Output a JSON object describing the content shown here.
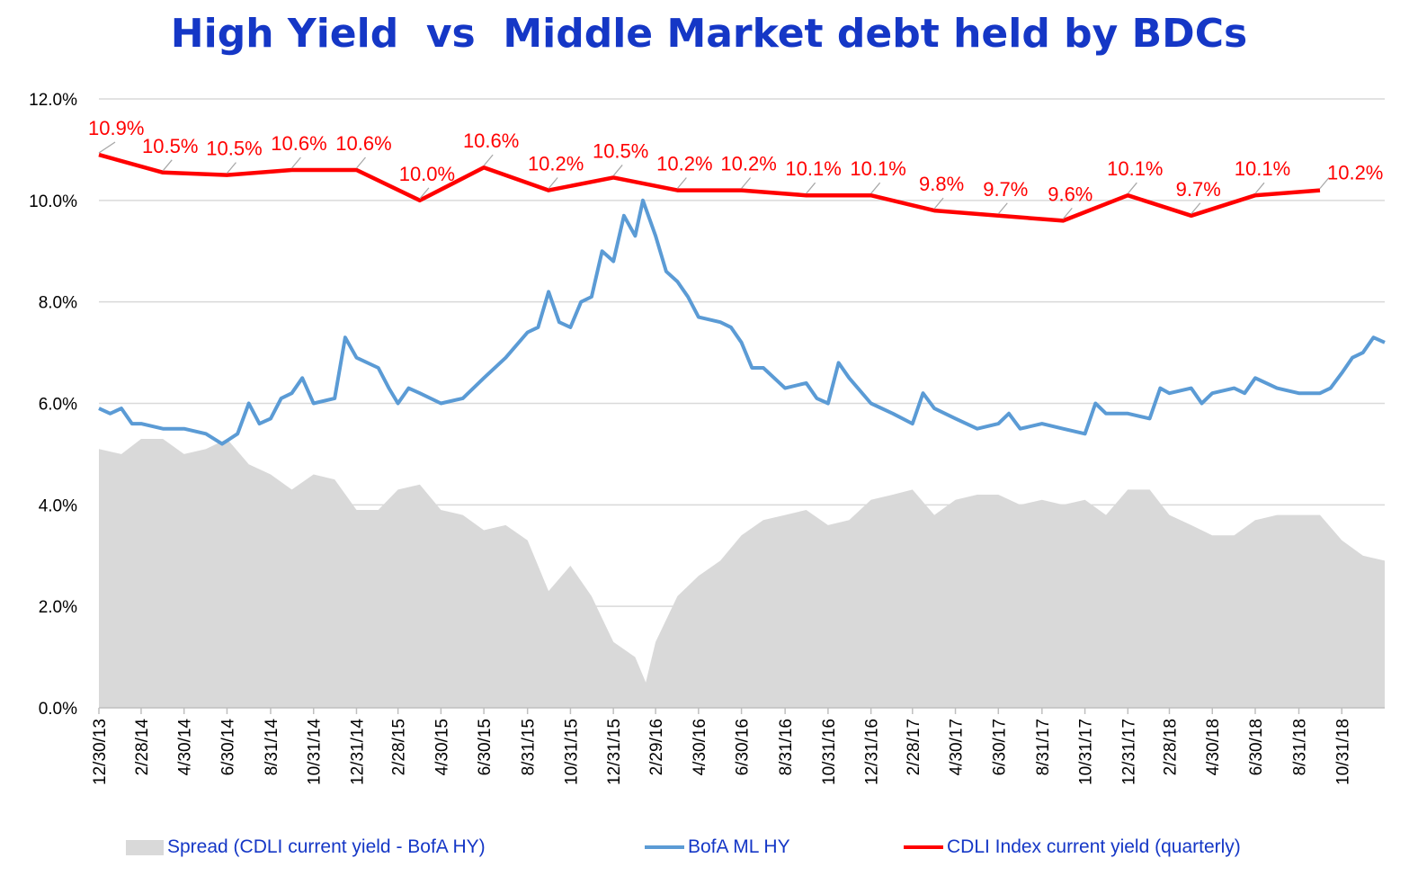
{
  "chart_data": {
    "type": "line",
    "title": "High Yield  vs  Middle Market debt held by BDCs",
    "title_color": "#1537C6",
    "legend_text_color": "#1537C6",
    "label_color": "#ff0000",
    "ylim": [
      0,
      12
    ],
    "y_ticks": [
      {
        "value": 0,
        "label": "0.0%"
      },
      {
        "value": 2,
        "label": "2.0%"
      },
      {
        "value": 4,
        "label": "4.0%"
      },
      {
        "value": 6,
        "label": "6.0%"
      },
      {
        "value": 8,
        "label": "8.0%"
      },
      {
        "value": 10,
        "label": "10.0%"
      },
      {
        "value": 12,
        "label": "12.0%"
      }
    ],
    "xlim": [
      "2013-12-30",
      "2018-12-31"
    ],
    "x_ticks": [
      {
        "date": "2013-12-30",
        "label": "12/30/13"
      },
      {
        "date": "2014-02-28",
        "label": "2/28/14"
      },
      {
        "date": "2014-04-30",
        "label": "4/30/14"
      },
      {
        "date": "2014-06-30",
        "label": "6/30/14"
      },
      {
        "date": "2014-08-31",
        "label": "8/31/14"
      },
      {
        "date": "2014-10-31",
        "label": "10/31/14"
      },
      {
        "date": "2014-12-31",
        "label": "12/31/14"
      },
      {
        "date": "2015-02-28",
        "label": "2/28/15"
      },
      {
        "date": "2015-04-30",
        "label": "4/30/15"
      },
      {
        "date": "2015-06-30",
        "label": "6/30/15"
      },
      {
        "date": "2015-08-31",
        "label": "8/31/15"
      },
      {
        "date": "2015-10-31",
        "label": "10/31/15"
      },
      {
        "date": "2015-12-31",
        "label": "12/31/15"
      },
      {
        "date": "2016-02-29",
        "label": "2/29/16"
      },
      {
        "date": "2016-04-30",
        "label": "4/30/16"
      },
      {
        "date": "2016-06-30",
        "label": "6/30/16"
      },
      {
        "date": "2016-08-31",
        "label": "8/31/16"
      },
      {
        "date": "2016-10-31",
        "label": "10/31/16"
      },
      {
        "date": "2016-12-31",
        "label": "12/31/16"
      },
      {
        "date": "2017-02-28",
        "label": "2/28/17"
      },
      {
        "date": "2017-04-30",
        "label": "4/30/17"
      },
      {
        "date": "2017-06-30",
        "label": "6/30/17"
      },
      {
        "date": "2017-08-31",
        "label": "8/31/17"
      },
      {
        "date": "2017-10-31",
        "label": "10/31/17"
      },
      {
        "date": "2017-12-31",
        "label": "12/31/17"
      },
      {
        "date": "2018-02-28",
        "label": "2/28/18"
      },
      {
        "date": "2018-04-30",
        "label": "4/30/18"
      },
      {
        "date": "2018-06-30",
        "label": "6/30/18"
      },
      {
        "date": "2018-08-31",
        "label": "8/31/18"
      },
      {
        "date": "2018-10-31",
        "label": "10/31/18"
      }
    ],
    "grid": "horizontal",
    "legend_position": "bottom",
    "series": [
      {
        "name": "Spread (CDLI current yield - BofA HY)",
        "kind": "area",
        "color": "#d9d9d9",
        "points": [
          [
            "2013-12-30",
            5.1
          ],
          [
            "2014-01-31",
            5.0
          ],
          [
            "2014-02-28",
            5.3
          ],
          [
            "2014-03-31",
            5.3
          ],
          [
            "2014-04-30",
            5.0
          ],
          [
            "2014-05-31",
            5.1
          ],
          [
            "2014-06-30",
            5.3
          ],
          [
            "2014-07-31",
            4.8
          ],
          [
            "2014-08-31",
            4.6
          ],
          [
            "2014-09-30",
            4.3
          ],
          [
            "2014-10-31",
            4.6
          ],
          [
            "2014-11-30",
            4.5
          ],
          [
            "2014-12-31",
            3.9
          ],
          [
            "2015-01-31",
            3.9
          ],
          [
            "2015-02-28",
            4.3
          ],
          [
            "2015-03-31",
            4.4
          ],
          [
            "2015-04-30",
            3.9
          ],
          [
            "2015-05-31",
            3.8
          ],
          [
            "2015-06-30",
            3.5
          ],
          [
            "2015-07-31",
            3.6
          ],
          [
            "2015-08-31",
            3.3
          ],
          [
            "2015-09-30",
            2.3
          ],
          [
            "2015-10-31",
            2.8
          ],
          [
            "2015-11-30",
            2.2
          ],
          [
            "2015-12-31",
            1.3
          ],
          [
            "2016-01-31",
            1.0
          ],
          [
            "2016-02-15",
            0.5
          ],
          [
            "2016-02-29",
            1.3
          ],
          [
            "2016-03-31",
            2.2
          ],
          [
            "2016-04-30",
            2.6
          ],
          [
            "2016-05-31",
            2.9
          ],
          [
            "2016-06-30",
            3.4
          ],
          [
            "2016-07-31",
            3.7
          ],
          [
            "2016-08-31",
            3.8
          ],
          [
            "2016-09-30",
            3.9
          ],
          [
            "2016-10-31",
            3.6
          ],
          [
            "2016-11-30",
            3.7
          ],
          [
            "2016-12-31",
            4.1
          ],
          [
            "2017-01-31",
            4.2
          ],
          [
            "2017-02-28",
            4.3
          ],
          [
            "2017-03-31",
            3.8
          ],
          [
            "2017-04-30",
            4.1
          ],
          [
            "2017-05-31",
            4.2
          ],
          [
            "2017-06-30",
            4.2
          ],
          [
            "2017-07-31",
            4.0
          ],
          [
            "2017-08-31",
            4.1
          ],
          [
            "2017-09-30",
            4.0
          ],
          [
            "2017-10-31",
            4.1
          ],
          [
            "2017-11-30",
            3.8
          ],
          [
            "2017-12-31",
            4.3
          ],
          [
            "2018-01-31",
            4.3
          ],
          [
            "2018-02-28",
            3.8
          ],
          [
            "2018-03-31",
            3.6
          ],
          [
            "2018-04-30",
            3.4
          ],
          [
            "2018-05-31",
            3.4
          ],
          [
            "2018-06-30",
            3.7
          ],
          [
            "2018-07-31",
            3.8
          ],
          [
            "2018-08-31",
            3.8
          ],
          [
            "2018-09-30",
            3.8
          ],
          [
            "2018-10-31",
            3.3
          ],
          [
            "2018-11-30",
            3.0
          ],
          [
            "2018-12-31",
            2.9
          ]
        ]
      },
      {
        "name": "BofA ML HY",
        "kind": "line",
        "color": "#5B9BD5",
        "points": [
          [
            "2013-12-30",
            5.9
          ],
          [
            "2014-01-15",
            5.8
          ],
          [
            "2014-01-31",
            5.9
          ],
          [
            "2014-02-15",
            5.6
          ],
          [
            "2014-02-28",
            5.6
          ],
          [
            "2014-03-31",
            5.5
          ],
          [
            "2014-04-30",
            5.5
          ],
          [
            "2014-05-31",
            5.4
          ],
          [
            "2014-06-23",
            5.2
          ],
          [
            "2014-07-15",
            5.4
          ],
          [
            "2014-07-31",
            6.0
          ],
          [
            "2014-08-15",
            5.6
          ],
          [
            "2014-08-31",
            5.7
          ],
          [
            "2014-09-15",
            6.1
          ],
          [
            "2014-09-30",
            6.2
          ],
          [
            "2014-10-15",
            6.5
          ],
          [
            "2014-10-31",
            6.0
          ],
          [
            "2014-11-30",
            6.1
          ],
          [
            "2014-12-15",
            7.3
          ],
          [
            "2014-12-31",
            6.9
          ],
          [
            "2015-01-31",
            6.7
          ],
          [
            "2015-02-15",
            6.3
          ],
          [
            "2015-02-28",
            6.0
          ],
          [
            "2015-03-15",
            6.3
          ],
          [
            "2015-03-31",
            6.2
          ],
          [
            "2015-04-30",
            6.0
          ],
          [
            "2015-05-31",
            6.1
          ],
          [
            "2015-06-30",
            6.5
          ],
          [
            "2015-07-31",
            6.9
          ],
          [
            "2015-08-31",
            7.4
          ],
          [
            "2015-09-15",
            7.5
          ],
          [
            "2015-09-30",
            8.2
          ],
          [
            "2015-10-15",
            7.6
          ],
          [
            "2015-10-31",
            7.5
          ],
          [
            "2015-11-15",
            8.0
          ],
          [
            "2015-11-30",
            8.1
          ],
          [
            "2015-12-15",
            9.0
          ],
          [
            "2015-12-31",
            8.8
          ],
          [
            "2016-01-15",
            9.7
          ],
          [
            "2016-01-31",
            9.3
          ],
          [
            "2016-02-11",
            10.0
          ],
          [
            "2016-02-29",
            9.3
          ],
          [
            "2016-03-15",
            8.6
          ],
          [
            "2016-03-31",
            8.4
          ],
          [
            "2016-04-15",
            8.1
          ],
          [
            "2016-04-30",
            7.7
          ],
          [
            "2016-05-31",
            7.6
          ],
          [
            "2016-06-15",
            7.5
          ],
          [
            "2016-06-30",
            7.2
          ],
          [
            "2016-07-15",
            6.7
          ],
          [
            "2016-07-31",
            6.7
          ],
          [
            "2016-08-31",
            6.3
          ],
          [
            "2016-09-30",
            6.4
          ],
          [
            "2016-10-15",
            6.1
          ],
          [
            "2016-10-31",
            6.0
          ],
          [
            "2016-11-15",
            6.8
          ],
          [
            "2016-11-30",
            6.5
          ],
          [
            "2016-12-31",
            6.0
          ],
          [
            "2017-01-31",
            5.8
          ],
          [
            "2017-02-28",
            5.6
          ],
          [
            "2017-03-15",
            6.2
          ],
          [
            "2017-03-31",
            5.9
          ],
          [
            "2017-04-30",
            5.7
          ],
          [
            "2017-05-31",
            5.5
          ],
          [
            "2017-06-30",
            5.6
          ],
          [
            "2017-07-15",
            5.8
          ],
          [
            "2017-07-31",
            5.5
          ],
          [
            "2017-08-31",
            5.6
          ],
          [
            "2017-09-30",
            5.5
          ],
          [
            "2017-10-31",
            5.4
          ],
          [
            "2017-11-15",
            6.0
          ],
          [
            "2017-11-30",
            5.8
          ],
          [
            "2017-12-31",
            5.8
          ],
          [
            "2018-01-31",
            5.7
          ],
          [
            "2018-02-15",
            6.3
          ],
          [
            "2018-02-28",
            6.2
          ],
          [
            "2018-03-31",
            6.3
          ],
          [
            "2018-04-15",
            6.0
          ],
          [
            "2018-04-30",
            6.2
          ],
          [
            "2018-05-31",
            6.3
          ],
          [
            "2018-06-15",
            6.2
          ],
          [
            "2018-06-30",
            6.5
          ],
          [
            "2018-07-31",
            6.3
          ],
          [
            "2018-08-31",
            6.2
          ],
          [
            "2018-09-30",
            6.2
          ],
          [
            "2018-10-15",
            6.3
          ],
          [
            "2018-10-31",
            6.6
          ],
          [
            "2018-11-15",
            6.9
          ],
          [
            "2018-11-30",
            7.0
          ],
          [
            "2018-12-15",
            7.3
          ],
          [
            "2018-12-31",
            7.2
          ]
        ]
      },
      {
        "name": "CDLI Index current yield (quarterly)",
        "kind": "line",
        "color": "#ff0000",
        "points": [
          [
            "2013-12-30",
            10.9,
            "10.9%"
          ],
          [
            "2014-03-31",
            10.55,
            "10.5%"
          ],
          [
            "2014-06-30",
            10.5,
            "10.5%"
          ],
          [
            "2014-09-30",
            10.6,
            "10.6%"
          ],
          [
            "2014-12-31",
            10.6,
            "10.6%"
          ],
          [
            "2015-03-31",
            10.0,
            "10.0%"
          ],
          [
            "2015-06-30",
            10.65,
            "10.6%"
          ],
          [
            "2015-09-30",
            10.2,
            "10.2%"
          ],
          [
            "2015-12-31",
            10.45,
            "10.5%"
          ],
          [
            "2016-03-31",
            10.2,
            "10.2%"
          ],
          [
            "2016-06-30",
            10.2,
            "10.2%"
          ],
          [
            "2016-09-30",
            10.1,
            "10.1%"
          ],
          [
            "2016-12-31",
            10.1,
            "10.1%"
          ],
          [
            "2017-03-31",
            9.8,
            "9.8%"
          ],
          [
            "2017-06-30",
            9.7,
            "9.7%"
          ],
          [
            "2017-09-30",
            9.6,
            "9.6%"
          ],
          [
            "2017-12-31",
            10.1,
            "10.1%"
          ],
          [
            "2018-03-31",
            9.7,
            "9.7%"
          ],
          [
            "2018-06-30",
            10.1,
            "10.1%"
          ],
          [
            "2018-09-30",
            10.2,
            "10.2%"
          ]
        ]
      }
    ]
  }
}
